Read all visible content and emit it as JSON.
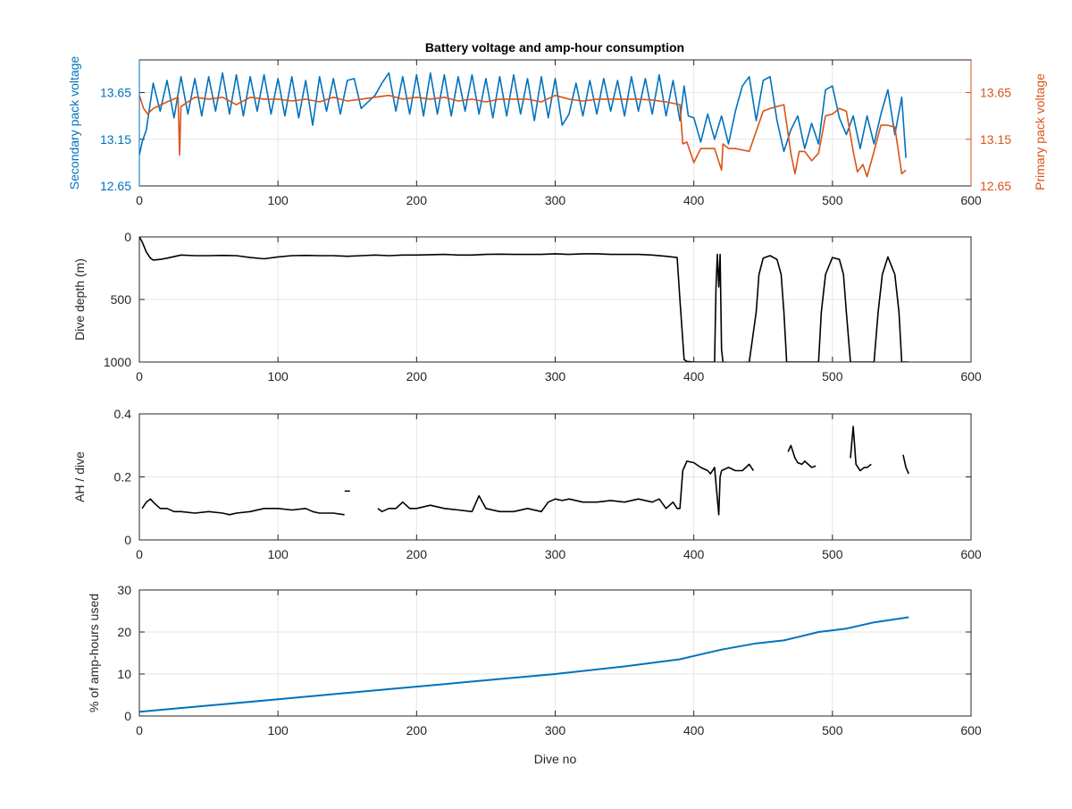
{
  "figure": {
    "title": "Battery voltage and amp-hour consumption"
  },
  "chart_data": [
    {
      "type": "line",
      "title": "Battery voltage and amp-hour consumption",
      "xlabel": "",
      "ylabel": "Secondary pack voltage",
      "ylabel_right": "Primary pack voltage",
      "xlim": [
        0,
        600
      ],
      "ylim": [
        12.65,
        14.0
      ],
      "xticks": [
        "0",
        "100",
        "200",
        "300",
        "400",
        "500",
        "600"
      ],
      "yticks": [
        "12.65",
        "13.15",
        "13.65"
      ],
      "yticks_right": [
        "12.65",
        "13.15",
        "13.65"
      ],
      "grid": true,
      "series": [
        {
          "name": "Secondary pack voltage",
          "axis": "left",
          "color": "#0072BD",
          "x": [
            0,
            2,
            5,
            8,
            10,
            15,
            20,
            25,
            30,
            35,
            40,
            45,
            50,
            55,
            60,
            65,
            70,
            75,
            80,
            85,
            90,
            95,
            100,
            105,
            110,
            115,
            120,
            125,
            130,
            135,
            140,
            145,
            150,
            155,
            160,
            170,
            175,
            180,
            185,
            190,
            195,
            200,
            205,
            210,
            215,
            220,
            225,
            230,
            235,
            240,
            245,
            250,
            255,
            260,
            265,
            270,
            275,
            280,
            285,
            290,
            295,
            300,
            305,
            310,
            315,
            320,
            325,
            330,
            335,
            340,
            345,
            350,
            355,
            360,
            365,
            370,
            375,
            380,
            385,
            390,
            393,
            396,
            400,
            405,
            410,
            415,
            420,
            425,
            430,
            435,
            440,
            445,
            450,
            455,
            460,
            465,
            470,
            475,
            480,
            485,
            490,
            495,
            500,
            505,
            510,
            515,
            520,
            525,
            530,
            535,
            540,
            545,
            550,
            553
          ],
          "values": [
            12.98,
            13.12,
            13.25,
            13.55,
            13.75,
            13.45,
            13.78,
            13.38,
            13.82,
            13.42,
            13.8,
            13.4,
            13.82,
            13.45,
            13.86,
            13.42,
            13.84,
            13.4,
            13.82,
            13.45,
            13.84,
            13.42,
            13.8,
            13.4,
            13.82,
            13.38,
            13.78,
            13.3,
            13.82,
            13.45,
            13.8,
            13.42,
            13.78,
            13.8,
            13.48,
            13.62,
            13.75,
            13.86,
            13.45,
            13.82,
            13.42,
            13.84,
            13.4,
            13.86,
            13.42,
            13.84,
            13.4,
            13.82,
            13.45,
            13.84,
            13.42,
            13.8,
            13.38,
            13.82,
            13.4,
            13.84,
            13.42,
            13.8,
            13.35,
            13.82,
            13.38,
            13.8,
            13.3,
            13.42,
            13.75,
            13.4,
            13.78,
            13.42,
            13.8,
            13.45,
            13.78,
            13.4,
            13.82,
            13.45,
            13.8,
            13.42,
            13.84,
            13.4,
            13.78,
            13.35,
            13.72,
            13.4,
            13.38,
            13.12,
            13.42,
            13.15,
            13.4,
            13.1,
            13.45,
            13.72,
            13.82,
            13.35,
            13.78,
            13.82,
            13.35,
            13.02,
            13.25,
            13.4,
            13.05,
            13.32,
            13.1,
            13.68,
            13.72,
            13.38,
            13.2,
            13.4,
            13.05,
            13.4,
            13.1,
            13.42,
            13.68,
            13.2,
            13.6,
            12.95
          ]
        },
        {
          "name": "Primary pack voltage",
          "axis": "right",
          "color": "#D95319",
          "x": [
            0,
            3,
            6,
            10,
            20,
            28,
            29,
            30,
            40,
            50,
            60,
            70,
            80,
            90,
            100,
            110,
            120,
            130,
            140,
            150,
            160,
            170,
            180,
            190,
            200,
            210,
            220,
            230,
            240,
            250,
            260,
            270,
            280,
            290,
            300,
            310,
            320,
            330,
            340,
            350,
            360,
            370,
            380,
            390,
            392,
            395,
            400,
            405,
            410,
            415,
            420,
            421,
            425,
            430,
            440,
            450,
            455,
            460,
            465,
            470,
            473,
            476,
            480,
            485,
            490,
            495,
            500,
            505,
            510,
            515,
            518,
            522,
            525,
            530,
            535,
            540,
            545,
            550,
            553
          ],
          "values": [
            13.62,
            13.48,
            13.42,
            13.48,
            13.55,
            13.6,
            12.98,
            13.5,
            13.6,
            13.58,
            13.6,
            13.52,
            13.6,
            13.58,
            13.58,
            13.56,
            13.58,
            13.55,
            13.6,
            13.56,
            13.58,
            13.6,
            13.62,
            13.58,
            13.6,
            13.58,
            13.6,
            13.56,
            13.58,
            13.55,
            13.58,
            13.58,
            13.58,
            13.55,
            13.62,
            13.58,
            13.56,
            13.58,
            13.58,
            13.58,
            13.58,
            13.57,
            13.55,
            13.52,
            13.1,
            13.12,
            12.9,
            13.05,
            13.05,
            13.05,
            12.82,
            13.1,
            13.05,
            13.05,
            13.02,
            13.45,
            13.48,
            13.5,
            13.52,
            13.0,
            12.78,
            13.02,
            13.02,
            12.92,
            13.0,
            13.4,
            13.42,
            13.48,
            13.45,
            13.02,
            12.8,
            12.88,
            12.75,
            13.02,
            13.3,
            13.3,
            13.28,
            12.78,
            12.82
          ]
        }
      ]
    },
    {
      "type": "line",
      "title": "",
      "xlabel": "",
      "ylabel": "Dive depth (m)",
      "xlim": [
        0,
        600
      ],
      "ylim": [
        1000,
        0
      ],
      "xticks": [
        "0",
        "100",
        "200",
        "300",
        "400",
        "500",
        "600"
      ],
      "yticks": [
        "0",
        "500",
        "1000"
      ],
      "grid": true,
      "series": [
        {
          "color": "#000000",
          "x": [
            0,
            2,
            5,
            8,
            10,
            15,
            20,
            30,
            40,
            50,
            60,
            70,
            80,
            90,
            100,
            110,
            120,
            130,
            140,
            150,
            160,
            170,
            180,
            190,
            200,
            210,
            220,
            230,
            240,
            250,
            260,
            270,
            280,
            290,
            300,
            310,
            320,
            330,
            340,
            350,
            360,
            370,
            380,
            388,
            390,
            393,
            395,
            400,
            410,
            415,
            416,
            417,
            418,
            419,
            420,
            421,
            430,
            440,
            445,
            447,
            450,
            455,
            460,
            463,
            465,
            467,
            470,
            480,
            490,
            492,
            495,
            500,
            505,
            508,
            510,
            513,
            520,
            530,
            533,
            536,
            540,
            545,
            548,
            550,
            552,
            555
          ],
          "values": [
            0,
            40,
            120,
            170,
            185,
            180,
            170,
            145,
            150,
            150,
            148,
            150,
            165,
            175,
            160,
            150,
            148,
            150,
            150,
            155,
            150,
            145,
            150,
            145,
            145,
            142,
            140,
            145,
            145,
            140,
            138,
            140,
            140,
            140,
            135,
            140,
            135,
            135,
            140,
            140,
            140,
            145,
            155,
            165,
            500,
            980,
            995,
            1000,
            1000,
            1000,
            400,
            140,
            400,
            140,
            900,
            1000,
            1005,
            1000,
            600,
            300,
            170,
            150,
            180,
            300,
            600,
            1000,
            1000,
            1000,
            1000,
            600,
            300,
            165,
            180,
            300,
            600,
            1000,
            1000,
            1000,
            600,
            300,
            160,
            300,
            600,
            1000,
            1000,
            1000
          ]
        }
      ]
    },
    {
      "type": "line",
      "title": "",
      "xlabel": "",
      "ylabel": "AH / dive",
      "xlim": [
        0,
        600
      ],
      "ylim": [
        0,
        0.4
      ],
      "xticks": [
        "0",
        "100",
        "200",
        "300",
        "400",
        "500",
        "600"
      ],
      "yticks": [
        "0",
        "0.2",
        "0.4"
      ],
      "grid": true,
      "series": [
        {
          "color": "#000000",
          "x": [
            2,
            5,
            8,
            10,
            15,
            20,
            25,
            30,
            40,
            50,
            60,
            65,
            70,
            80,
            90,
            100,
            110,
            120,
            125,
            130,
            140,
            148
          ],
          "values": [
            0.1,
            0.12,
            0.13,
            0.12,
            0.1,
            0.1,
            0.09,
            0.09,
            0.085,
            0.09,
            0.085,
            0.08,
            0.085,
            0.09,
            0.1,
            0.1,
            0.095,
            0.1,
            0.09,
            0.085,
            0.085,
            0.08
          ]
        },
        {
          "color": "#000000",
          "x": [
            150
          ],
          "values": [
            0.155
          ]
        },
        {
          "color": "#000000",
          "x": [
            172,
            175,
            180,
            185,
            190,
            195,
            200,
            210,
            220,
            230,
            240,
            245,
            250,
            260,
            270,
            280,
            290,
            295,
            300,
            305,
            310,
            320,
            330,
            340,
            350,
            360,
            370,
            375,
            380,
            385,
            388,
            390,
            392,
            395,
            400,
            405,
            410,
            412,
            415,
            418,
            419,
            420,
            425,
            430,
            435,
            440,
            443
          ],
          "values": [
            0.1,
            0.09,
            0.1,
            0.1,
            0.12,
            0.1,
            0.1,
            0.11,
            0.1,
            0.095,
            0.09,
            0.14,
            0.1,
            0.09,
            0.09,
            0.1,
            0.09,
            0.12,
            0.13,
            0.125,
            0.13,
            0.12,
            0.12,
            0.125,
            0.12,
            0.13,
            0.12,
            0.13,
            0.1,
            0.12,
            0.1,
            0.1,
            0.22,
            0.25,
            0.245,
            0.23,
            0.22,
            0.21,
            0.23,
            0.08,
            0.2,
            0.22,
            0.23,
            0.22,
            0.22,
            0.24,
            0.22
          ]
        },
        {
          "color": "#000000",
          "x": [
            468,
            470,
            473,
            475,
            478,
            480,
            485,
            488
          ],
          "values": [
            0.28,
            0.3,
            0.26,
            0.245,
            0.24,
            0.25,
            0.23,
            0.235
          ]
        },
        {
          "color": "#000000",
          "x": [
            513,
            515,
            517,
            520,
            523,
            525,
            528
          ],
          "values": [
            0.26,
            0.36,
            0.24,
            0.22,
            0.23,
            0.23,
            0.24
          ]
        },
        {
          "color": "#000000",
          "x": [
            551,
            553,
            555
          ],
          "values": [
            0.27,
            0.23,
            0.21
          ]
        }
      ]
    },
    {
      "type": "line",
      "title": "",
      "xlabel": "Dive no",
      "ylabel": "% of amp-hours used",
      "xlim": [
        0,
        600
      ],
      "ylim": [
        0,
        30
      ],
      "xticks": [
        "0",
        "100",
        "200",
        "300",
        "400",
        "500",
        "600"
      ],
      "yticks": [
        "0",
        "10",
        "20",
        "30"
      ],
      "grid": true,
      "series": [
        {
          "color": "#0072BD",
          "x": [
            0,
            50,
            100,
            150,
            200,
            250,
            300,
            350,
            390,
            400,
            420,
            445,
            465,
            490,
            510,
            530,
            555
          ],
          "values": [
            1.0,
            2.5,
            4.0,
            5.5,
            7.0,
            8.5,
            10.0,
            11.8,
            13.5,
            14.3,
            15.8,
            17.3,
            18.0,
            20.0,
            20.8,
            22.3,
            23.5
          ]
        }
      ]
    }
  ]
}
